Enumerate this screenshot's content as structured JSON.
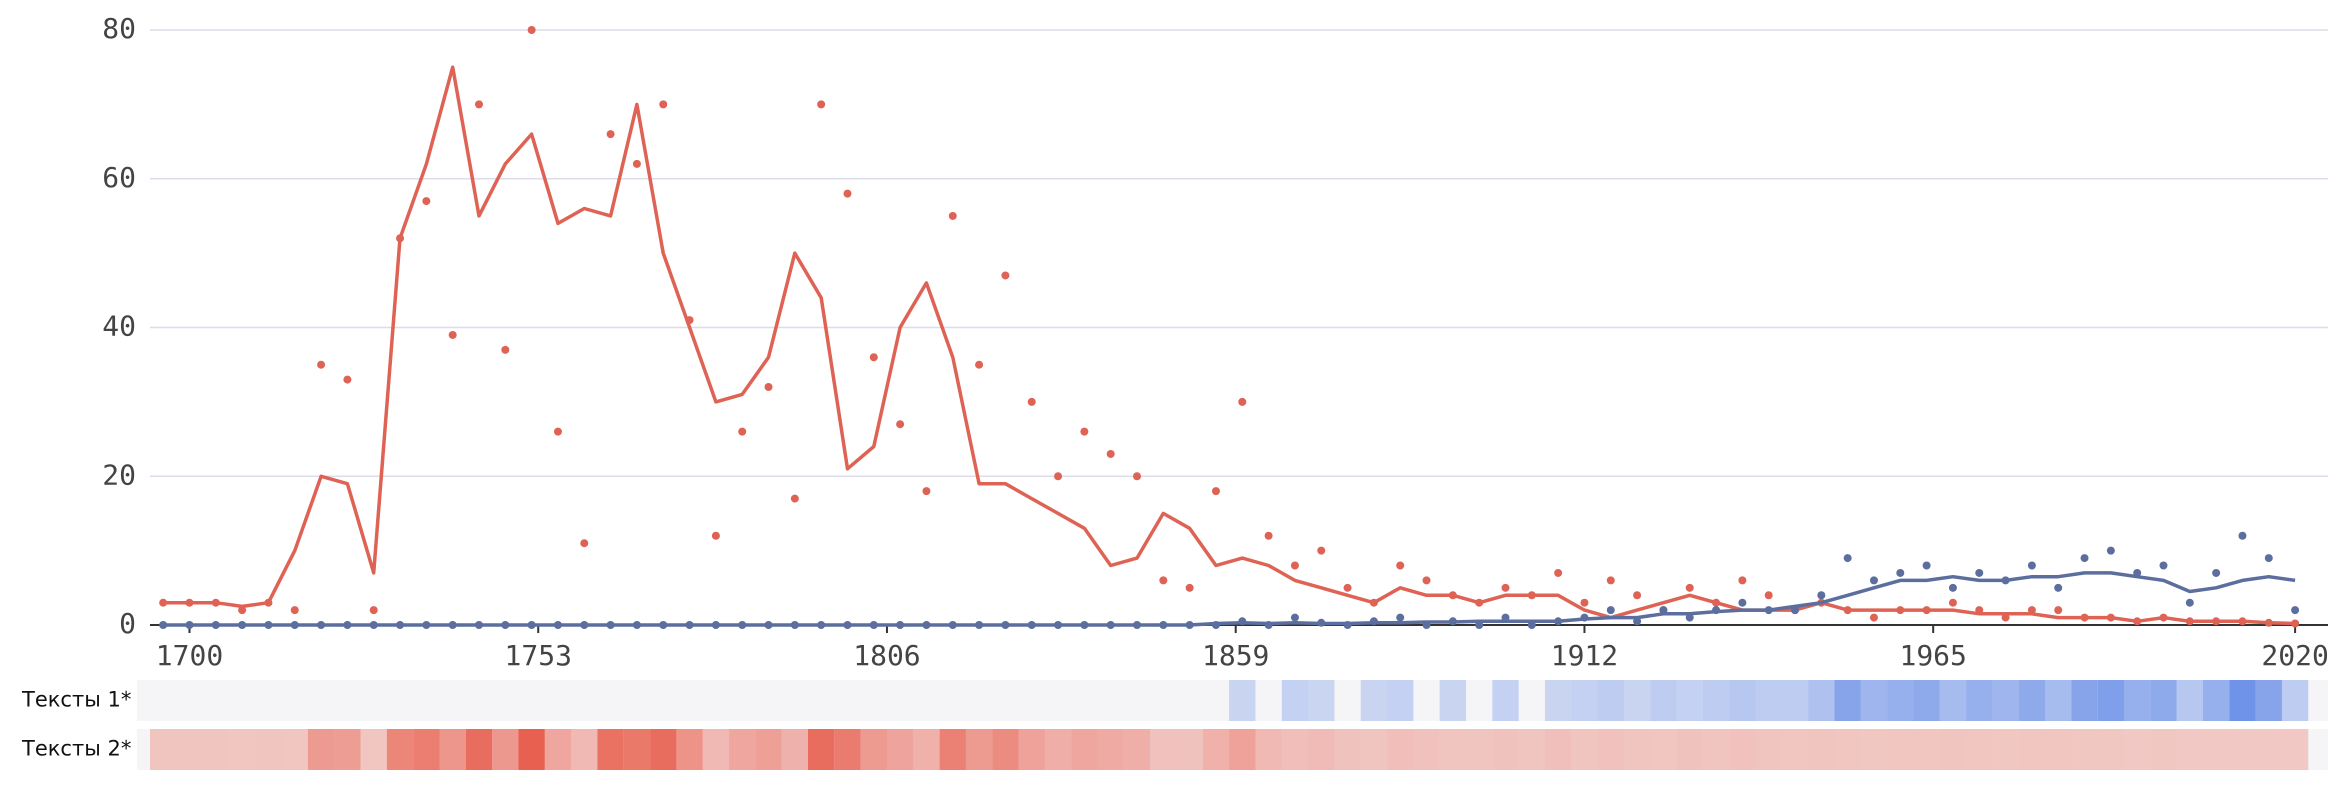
{
  "chart_data": {
    "type": "scatter-line",
    "x": [
      1696,
      1700,
      1704,
      1708,
      1712,
      1716,
      1720,
      1724,
      1728,
      1732,
      1736,
      1740,
      1744,
      1748,
      1752,
      1756,
      1760,
      1764,
      1768,
      1772,
      1776,
      1780,
      1784,
      1788,
      1792,
      1796,
      1800,
      1804,
      1808,
      1812,
      1816,
      1820,
      1824,
      1828,
      1832,
      1836,
      1840,
      1844,
      1848,
      1852,
      1856,
      1860,
      1864,
      1868,
      1872,
      1876,
      1880,
      1884,
      1888,
      1892,
      1896,
      1900,
      1904,
      1908,
      1912,
      1916,
      1920,
      1924,
      1928,
      1932,
      1936,
      1940,
      1944,
      1948,
      1952,
      1956,
      1960,
      1964,
      1968,
      1972,
      1976,
      1980,
      1984,
      1988,
      1992,
      1996,
      2000,
      2004,
      2008,
      2012,
      2016,
      2020
    ],
    "series": [
      {
        "name": "Тексты 1*",
        "color": "#5b6e9e",
        "strip_color": "#6f93e8",
        "values": [
          0,
          0,
          0,
          0,
          0,
          0,
          0,
          0,
          0,
          0,
          0,
          0,
          0,
          0,
          0,
          0,
          0,
          0,
          0,
          0,
          0,
          0,
          0,
          0,
          0,
          0,
          0,
          0,
          0,
          0,
          0,
          0,
          0,
          0,
          0,
          0,
          0,
          0,
          0,
          0,
          0,
          0.5,
          0,
          1,
          0.3,
          0,
          0.5,
          1,
          0,
          0.5,
          0,
          1,
          0,
          0.5,
          1,
          2,
          0.5,
          2,
          1,
          2,
          3,
          2,
          2,
          4,
          9,
          6,
          7,
          8,
          5,
          7,
          6,
          8,
          5,
          9,
          10,
          7,
          8,
          3,
          7,
          12,
          9,
          2
        ],
        "smoothed": [
          0,
          0,
          0,
          0,
          0,
          0,
          0,
          0,
          0,
          0,
          0,
          0,
          0,
          0,
          0,
          0,
          0,
          0,
          0,
          0,
          0,
          0,
          0,
          0,
          0,
          0,
          0,
          0,
          0,
          0,
          0,
          0,
          0,
          0,
          0,
          0,
          0,
          0,
          0,
          0,
          0.2,
          0.3,
          0.2,
          0.3,
          0.2,
          0.2,
          0.3,
          0.3,
          0.4,
          0.4,
          0.5,
          0.5,
          0.5,
          0.5,
          0.8,
          1,
          1,
          1.5,
          1.5,
          1.8,
          2,
          2,
          2.5,
          3,
          4,
          5,
          6,
          6,
          6.5,
          6,
          6,
          6.5,
          6.5,
          7,
          7,
          6.5,
          6,
          4.5,
          5,
          6,
          6.5,
          6
        ]
      },
      {
        "name": "Тексты 2*",
        "color": "#de6354",
        "strip_color": "#e8604f",
        "values": [
          3,
          3,
          3,
          2,
          3,
          2,
          35,
          33,
          2,
          52,
          57,
          39,
          70,
          37,
          80,
          26,
          11,
          66,
          62,
          70,
          41,
          12,
          26,
          32,
          17,
          70,
          58,
          36,
          27,
          18,
          55,
          35,
          47,
          30,
          20,
          26,
          23,
          20,
          6,
          5,
          18,
          30,
          12,
          8,
          10,
          5,
          3,
          8,
          6,
          4,
          3,
          5,
          4,
          7,
          3,
          6,
          4,
          2,
          5,
          3,
          6,
          4,
          2,
          3,
          2,
          1,
          2,
          2,
          3,
          2,
          1,
          2,
          2,
          1,
          1,
          0.5,
          1,
          0.5,
          0.5,
          0.5,
          0.3,
          0.2
        ],
        "smoothed": [
          3,
          3,
          3,
          2.5,
          3,
          10,
          20,
          19,
          7,
          52,
          62,
          75,
          55,
          62,
          66,
          54,
          56,
          55,
          70,
          50,
          40,
          30,
          31,
          36,
          50,
          44,
          21,
          24,
          40,
          46,
          36,
          19,
          19,
          17,
          15,
          13,
          8,
          9,
          15,
          13,
          8,
          9,
          8,
          6,
          5,
          4,
          3,
          5,
          4,
          4,
          3,
          4,
          4,
          4,
          2,
          1,
          2,
          3,
          4,
          3,
          2,
          2,
          2,
          3,
          2,
          2,
          2,
          2,
          2,
          1.5,
          1.5,
          1.5,
          1,
          1,
          1,
          0.5,
          1,
          0.5,
          0.5,
          0.5,
          0.3,
          0.2
        ]
      }
    ],
    "xlim": [
      1694,
      2025
    ],
    "ylim": [
      0,
      80
    ],
    "xticks": [
      1700,
      1753,
      1806,
      1859,
      1912,
      1965,
      2020
    ],
    "yticks": [
      0,
      20,
      40,
      60,
      80
    ],
    "grid": true
  }
}
